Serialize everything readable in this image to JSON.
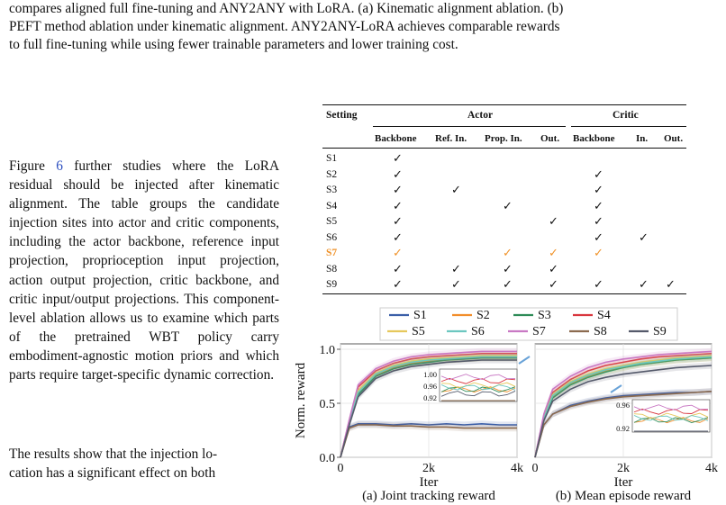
{
  "caption": {
    "line1": "compares aligned full fine-tuning and ANY2ANY with LoRA. (a) Kinematic alignment ablation. (b)",
    "line2": "PEFT method ablation under kinematic alignment. ANY2ANY-LoRA achieves comparable rewards",
    "line3": "to full fine-tuning while using fewer trainable parameters and lower training cost."
  },
  "body": {
    "para1_pre": "Figure ",
    "para1_ref": "6",
    "para1_post": " further studies where the LoRA residual should be injected after kinematic alignment. The table groups the candidate injection sites into actor and critic components, including the actor backbone, reference input projection, proprioception input projection, action output projection, critic backbone, and critic input/output projections. This component-level ablation allows us to examine which parts of the pretrained WBT policy carry embodiment-agnostic motion priors and which parts require target-specific dynamic correction.",
    "para2": "The results show that the injection lo-",
    "para3": "cation has a significant effect on both"
  },
  "table": {
    "setting_header": "Setting",
    "actor_header": "Actor",
    "critic_header": "Critic",
    "sub_headers": [
      "Backbone",
      "Ref. In.",
      "Prop. In.",
      "Out.",
      "Backbone",
      "In.",
      "Out."
    ],
    "rows": [
      {
        "label": "S1",
        "checks": [
          1,
          0,
          0,
          0,
          0,
          0,
          0
        ]
      },
      {
        "label": "S2",
        "checks": [
          1,
          0,
          0,
          0,
          1,
          0,
          0
        ]
      },
      {
        "label": "S3",
        "checks": [
          1,
          1,
          0,
          0,
          1,
          0,
          0
        ]
      },
      {
        "label": "S4",
        "checks": [
          1,
          0,
          1,
          0,
          1,
          0,
          0
        ]
      },
      {
        "label": "S5",
        "checks": [
          1,
          0,
          0,
          1,
          1,
          0,
          0
        ]
      },
      {
        "label": "S6",
        "checks": [
          1,
          0,
          0,
          0,
          1,
          1,
          0
        ]
      },
      {
        "label": "S7",
        "checks": [
          1,
          0,
          1,
          1,
          1,
          0,
          0
        ]
      },
      {
        "label": "S8",
        "checks": [
          1,
          1,
          1,
          1,
          0,
          0,
          0
        ]
      },
      {
        "label": "S9",
        "checks": [
          1,
          1,
          1,
          1,
          1,
          1,
          1
        ]
      }
    ],
    "check_glyph": "✓",
    "highlight_row": "S7",
    "highlight_color": "#f0932b"
  },
  "legend": [
    {
      "name": "S1",
      "color": "#3b5fa8"
    },
    {
      "name": "S2",
      "color": "#f28e2b"
    },
    {
      "name": "S3",
      "color": "#2e8b57"
    },
    {
      "name": "S4",
      "color": "#d9363e"
    },
    {
      "name": "S5",
      "color": "#e6c85c"
    },
    {
      "name": "S6",
      "color": "#6cc7c0"
    },
    {
      "name": "S7",
      "color": "#c979c4"
    },
    {
      "name": "S8",
      "color": "#8c6b4f"
    },
    {
      "name": "S9",
      "color": "#555a6b"
    }
  ],
  "chart_data": [
    {
      "type": "line",
      "title": "(a) Joint tracking reward",
      "xlabel": "Iter",
      "ylabel": "Norm. reward",
      "xticks": [
        "0",
        "2k",
        "4k"
      ],
      "yticks": [
        "0.0",
        "0.5",
        "1.0"
      ],
      "xlim": [
        0,
        4000
      ],
      "ylim": [
        0,
        1.05
      ],
      "inset_yticks": [
        "1.00",
        "0.96",
        "0.92"
      ],
      "x": [
        0,
        200,
        400,
        800,
        1200,
        1600,
        2000,
        2400,
        2800,
        3200,
        3600,
        4000
      ],
      "series": [
        {
          "name": "S1",
          "values": [
            0,
            0.28,
            0.31,
            0.31,
            0.3,
            0.31,
            0.3,
            0.31,
            0.3,
            0.31,
            0.3,
            0.3
          ]
        },
        {
          "name": "S2",
          "values": [
            0,
            0.32,
            0.6,
            0.76,
            0.83,
            0.87,
            0.89,
            0.9,
            0.91,
            0.92,
            0.92,
            0.92
          ]
        },
        {
          "name": "S3",
          "values": [
            0,
            0.31,
            0.58,
            0.75,
            0.82,
            0.86,
            0.88,
            0.9,
            0.91,
            0.92,
            0.92,
            0.92
          ]
        },
        {
          "name": "S4",
          "values": [
            0,
            0.34,
            0.65,
            0.8,
            0.87,
            0.91,
            0.93,
            0.94,
            0.95,
            0.96,
            0.96,
            0.96
          ]
        },
        {
          "name": "S5",
          "values": [
            0,
            0.33,
            0.62,
            0.78,
            0.85,
            0.89,
            0.91,
            0.92,
            0.93,
            0.94,
            0.94,
            0.94
          ]
        },
        {
          "name": "S6",
          "values": [
            0,
            0.32,
            0.6,
            0.77,
            0.84,
            0.88,
            0.9,
            0.91,
            0.92,
            0.93,
            0.93,
            0.93
          ]
        },
        {
          "name": "S7",
          "values": [
            0,
            0.35,
            0.67,
            0.82,
            0.89,
            0.93,
            0.95,
            0.96,
            0.97,
            0.98,
            0.98,
            0.98
          ]
        },
        {
          "name": "S8",
          "values": [
            0,
            0.27,
            0.3,
            0.3,
            0.29,
            0.29,
            0.28,
            0.28,
            0.27,
            0.27,
            0.27,
            0.27
          ]
        },
        {
          "name": "S9",
          "values": [
            0,
            0.3,
            0.56,
            0.73,
            0.8,
            0.84,
            0.86,
            0.88,
            0.89,
            0.9,
            0.9,
            0.9
          ]
        }
      ]
    },
    {
      "type": "line",
      "title": "(b) Mean episode reward",
      "xlabel": "Iter",
      "xticks": [
        "0",
        "2k",
        "4k"
      ],
      "xlim": [
        0,
        4000
      ],
      "ylim": [
        0,
        1.05
      ],
      "inset_yticks": [
        "0.96",
        "0.92"
      ],
      "x": [
        0,
        200,
        400,
        800,
        1200,
        1600,
        2000,
        2400,
        2800,
        3200,
        3600,
        4000
      ],
      "series": [
        {
          "name": "S1",
          "values": [
            0,
            0.3,
            0.4,
            0.48,
            0.52,
            0.55,
            0.57,
            0.58,
            0.59,
            0.6,
            0.6,
            0.61
          ]
        },
        {
          "name": "S2",
          "values": [
            0,
            0.36,
            0.56,
            0.68,
            0.75,
            0.8,
            0.83,
            0.86,
            0.88,
            0.9,
            0.91,
            0.92
          ]
        },
        {
          "name": "S3",
          "values": [
            0,
            0.35,
            0.55,
            0.67,
            0.74,
            0.79,
            0.83,
            0.86,
            0.88,
            0.9,
            0.91,
            0.92
          ]
        },
        {
          "name": "S4",
          "values": [
            0,
            0.38,
            0.6,
            0.72,
            0.8,
            0.85,
            0.88,
            0.91,
            0.93,
            0.94,
            0.95,
            0.96
          ]
        },
        {
          "name": "S5",
          "values": [
            0,
            0.37,
            0.58,
            0.7,
            0.77,
            0.82,
            0.85,
            0.88,
            0.9,
            0.92,
            0.93,
            0.94
          ]
        },
        {
          "name": "S6",
          "values": [
            0,
            0.36,
            0.57,
            0.69,
            0.76,
            0.81,
            0.84,
            0.87,
            0.89,
            0.91,
            0.92,
            0.93
          ]
        },
        {
          "name": "S7",
          "values": [
            0,
            0.4,
            0.63,
            0.75,
            0.83,
            0.88,
            0.91,
            0.93,
            0.95,
            0.96,
            0.97,
            0.98
          ]
        },
        {
          "name": "S8",
          "values": [
            0,
            0.3,
            0.4,
            0.47,
            0.51,
            0.54,
            0.56,
            0.57,
            0.58,
            0.59,
            0.6,
            0.61
          ]
        },
        {
          "name": "S9",
          "values": [
            0,
            0.34,
            0.52,
            0.63,
            0.7,
            0.74,
            0.77,
            0.79,
            0.81,
            0.83,
            0.84,
            0.85
          ]
        }
      ]
    }
  ]
}
